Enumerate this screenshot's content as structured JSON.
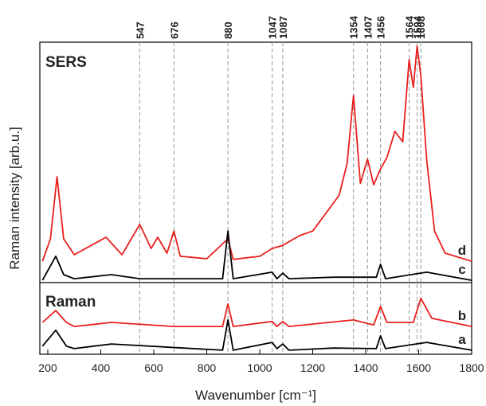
{
  "chart_data": {
    "type": "line",
    "ylabel": "Raman intensity [arb.u.]",
    "xlabel": "Wavenumber [cm⁻¹]",
    "panel_labels": [
      "SERS",
      "Raman"
    ],
    "xlim": [
      170,
      1800
    ],
    "xticks": [
      200,
      400,
      600,
      800,
      1000,
      1200,
      1400,
      1600,
      1800
    ],
    "ylim": [
      0,
      100
    ],
    "peak_lines": [
      547,
      676,
      880,
      1047,
      1087,
      1354,
      1407,
      1456,
      1564,
      1594,
      1608
    ],
    "series": [
      {
        "name": "d",
        "color": "#e8201e",
        "x": [
          180,
          210,
          235,
          260,
          300,
          420,
          480,
          547,
          590,
          615,
          650,
          676,
          700,
          800,
          880,
          900,
          1000,
          1047,
          1087,
          1150,
          1200,
          1250,
          1300,
          1330,
          1354,
          1380,
          1407,
          1430,
          1456,
          1480,
          1510,
          1540,
          1564,
          1580,
          1594,
          1608,
          1630,
          1660,
          1700,
          1800
        ],
        "values": [
          29.8,
          37.0,
          56.9,
          37.0,
          31.9,
          37.5,
          31.9,
          41.6,
          33.9,
          37.5,
          32.4,
          39.5,
          31.4,
          30.6,
          37.0,
          30.4,
          31.4,
          33.9,
          34.9,
          38.0,
          39.5,
          45.2,
          51.0,
          61.2,
          82.9,
          54.8,
          62.5,
          54.3,
          59.4,
          63.0,
          71.4,
          68.1,
          94.4,
          85.5,
          98.7,
          89.3,
          62.5,
          39.5,
          32.4,
          29.8
        ]
      },
      {
        "name": "c",
        "color": "#000000",
        "x": [
          180,
          200,
          230,
          260,
          300,
          440,
          547,
          860,
          880,
          900,
          1047,
          1065,
          1087,
          1110,
          1280,
          1440,
          1456,
          1475,
          1630,
          1800
        ],
        "values": [
          23.7,
          26.8,
          31.4,
          25.5,
          24.2,
          25.5,
          24.2,
          24.2,
          39.5,
          24.2,
          26.3,
          24.2,
          26.0,
          24.2,
          24.7,
          24.7,
          28.8,
          24.2,
          26.3,
          23.7
        ]
      },
      {
        "name": "b",
        "color": "#e8201e",
        "x": [
          180,
          230,
          270,
          300,
          440,
          676,
          860,
          880,
          900,
          1047,
          1065,
          1087,
          1110,
          1354,
          1430,
          1456,
          1480,
          1580,
          1608,
          1650,
          1800
        ],
        "values": [
          10.2,
          14.0,
          10.2,
          8.9,
          10.2,
          8.9,
          8.9,
          16.1,
          8.9,
          10.5,
          8.9,
          10.5,
          8.9,
          11.0,
          9.4,
          15.3,
          10.2,
          10.2,
          17.9,
          11.5,
          8.9
        ]
      },
      {
        "name": "a",
        "color": "#000000",
        "x": [
          180,
          230,
          270,
          300,
          440,
          860,
          880,
          900,
          1047,
          1065,
          1087,
          1110,
          1280,
          1440,
          1456,
          1475,
          1630,
          1800
        ],
        "values": [
          2.6,
          7.7,
          2.6,
          1.8,
          3.3,
          1.3,
          11.0,
          1.3,
          3.8,
          1.8,
          3.3,
          1.3,
          2.0,
          1.8,
          5.9,
          1.8,
          3.8,
          1.3
        ]
      }
    ]
  }
}
